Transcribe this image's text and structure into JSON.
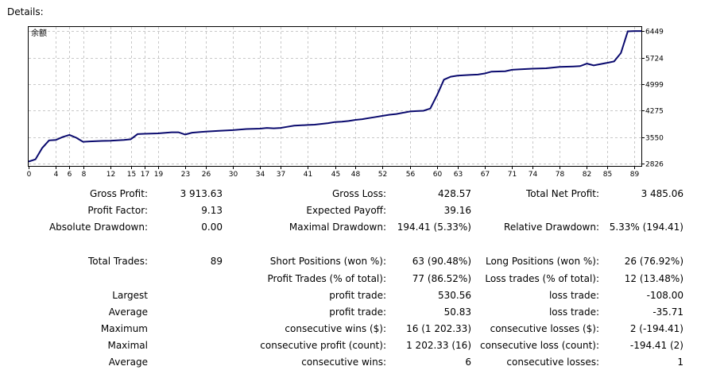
{
  "header": {
    "title": "Details:"
  },
  "chart_data": {
    "type": "line",
    "legend_label": "余额",
    "line_color": "#0a0a6e",
    "grid": true,
    "x_ticks": [
      0,
      4,
      6,
      8,
      12,
      15,
      17,
      19,
      23,
      26,
      30,
      34,
      37,
      41,
      45,
      48,
      52,
      56,
      60,
      63,
      67,
      71,
      74,
      78,
      82,
      85,
      89
    ],
    "y_ticks": [
      2826,
      3550,
      4275,
      4999,
      5724,
      6449
    ],
    "xlim": [
      0,
      90
    ],
    "ylim": [
      2760,
      6560
    ],
    "series": [
      {
        "points": [
          [
            0,
            2880
          ],
          [
            1,
            2940
          ],
          [
            2,
            3250
          ],
          [
            3,
            3460
          ],
          [
            4,
            3470
          ],
          [
            5,
            3550
          ],
          [
            6,
            3610
          ],
          [
            7,
            3530
          ],
          [
            8,
            3420
          ],
          [
            9,
            3430
          ],
          [
            10,
            3440
          ],
          [
            12,
            3450
          ],
          [
            14,
            3470
          ],
          [
            15,
            3490
          ],
          [
            16,
            3630
          ],
          [
            17,
            3640
          ],
          [
            19,
            3650
          ],
          [
            21,
            3680
          ],
          [
            22,
            3680
          ],
          [
            23,
            3620
          ],
          [
            24,
            3670
          ],
          [
            26,
            3700
          ],
          [
            28,
            3720
          ],
          [
            30,
            3740
          ],
          [
            32,
            3770
          ],
          [
            34,
            3780
          ],
          [
            35,
            3800
          ],
          [
            36,
            3790
          ],
          [
            37,
            3800
          ],
          [
            38,
            3830
          ],
          [
            39,
            3860
          ],
          [
            41,
            3880
          ],
          [
            42,
            3890
          ],
          [
            44,
            3930
          ],
          [
            45,
            3960
          ],
          [
            46,
            3970
          ],
          [
            47,
            3990
          ],
          [
            48,
            4020
          ],
          [
            49,
            4040
          ],
          [
            50,
            4070
          ],
          [
            51,
            4100
          ],
          [
            52,
            4130
          ],
          [
            53,
            4160
          ],
          [
            54,
            4180
          ],
          [
            56,
            4250
          ],
          [
            57,
            4260
          ],
          [
            58,
            4270
          ],
          [
            59,
            4330
          ],
          [
            60,
            4700
          ],
          [
            61,
            5120
          ],
          [
            62,
            5200
          ],
          [
            63,
            5230
          ],
          [
            65,
            5250
          ],
          [
            66,
            5260
          ],
          [
            67,
            5290
          ],
          [
            68,
            5340
          ],
          [
            70,
            5350
          ],
          [
            71,
            5390
          ],
          [
            72,
            5400
          ],
          [
            74,
            5420
          ],
          [
            76,
            5430
          ],
          [
            78,
            5470
          ],
          [
            80,
            5480
          ],
          [
            81,
            5490
          ],
          [
            82,
            5560
          ],
          [
            83,
            5510
          ],
          [
            85,
            5580
          ],
          [
            86,
            5620
          ],
          [
            87,
            5850
          ],
          [
            88,
            6440
          ],
          [
            89,
            6449
          ],
          [
            90,
            6449
          ]
        ]
      }
    ]
  },
  "stats": {
    "gross_profit_label": "Gross Profit:",
    "gross_profit": "3 913.63",
    "gross_loss_label": "Gross Loss:",
    "gross_loss": "428.57",
    "total_net_profit_label": "Total Net Profit:",
    "total_net_profit": "3 485.06",
    "profit_factor_label": "Profit Factor:",
    "profit_factor": "9.13",
    "expected_payoff_label": "Expected Payoff:",
    "expected_payoff": "39.16",
    "absolute_drawdown_label": "Absolute Drawdown:",
    "absolute_drawdown": "0.00",
    "maximal_drawdown_label": "Maximal Drawdown:",
    "maximal_drawdown": "194.41 (5.33%)",
    "relative_drawdown_label": "Relative Drawdown:",
    "relative_drawdown": "5.33% (194.41)",
    "total_trades_label": "Total Trades:",
    "total_trades": "89",
    "short_positions_label": "Short Positions (won %):",
    "short_positions": "63 (90.48%)",
    "long_positions_label": "Long Positions (won %):",
    "long_positions": "26 (76.92%)",
    "profit_trades_label": "Profit Trades (% of total):",
    "profit_trades": "77 (86.52%)",
    "loss_trades_label": "Loss trades (% of total):",
    "loss_trades": "12 (13.48%)",
    "largest_label": "Largest",
    "largest_profit_label": "profit trade:",
    "largest_profit": "530.56",
    "largest_loss_label": "loss trade:",
    "largest_loss": "-108.00",
    "average_label": "Average",
    "average_profit_label": "profit trade:",
    "average_profit": "50.83",
    "average_loss_label": "loss trade:",
    "average_loss": "-35.71",
    "maximum_label": "Maximum",
    "max_consec_wins_label": "consecutive wins ($):",
    "max_consec_wins": "16 (1 202.33)",
    "max_consec_losses_label": "consecutive losses ($):",
    "max_consec_losses": "2 (-194.41)",
    "maximal_label": "Maximal",
    "maximal_consec_profit_label": "consecutive profit (count):",
    "maximal_consec_profit": "1 202.33 (16)",
    "maximal_consec_loss_label": "consecutive loss (count):",
    "maximal_consec_loss": "-194.41 (2)",
    "average2_label": "Average",
    "avg_consec_wins_label": "consecutive wins:",
    "avg_consec_wins": "6",
    "avg_consec_losses_label": "consecutive losses:",
    "avg_consec_losses": "1"
  }
}
